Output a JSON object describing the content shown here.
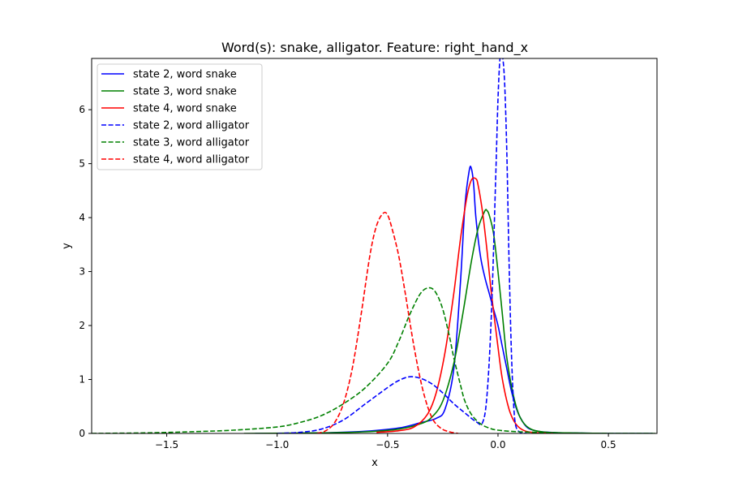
{
  "chart_data": {
    "type": "line",
    "title": "Word(s): snake, alligator. Feature: right_hand_x",
    "xlabel": "x",
    "ylabel": "y",
    "xlim": [
      -1.84,
      0.72
    ],
    "ylim": [
      0,
      6.95
    ],
    "xticks": [
      "−1.5",
      "−1.0",
      "−0.5",
      "0.0",
      "0.5"
    ],
    "xtick_values": [
      -1.5,
      -1.0,
      -0.5,
      0.0,
      0.5
    ],
    "yticks": [
      "0",
      "1",
      "2",
      "3",
      "4",
      "5",
      "6"
    ],
    "ytick_values": [
      0,
      1,
      2,
      3,
      4,
      5,
      6
    ],
    "grid": false,
    "legend_position": "top-left",
    "series": [
      {
        "name": "state 2, word snake",
        "color": "#0000ff",
        "style": "solid",
        "x": [
          -1.1,
          -0.8,
          -0.6,
          -0.45,
          -0.35,
          -0.28,
          -0.24,
          -0.2,
          -0.17,
          -0.15,
          -0.13,
          -0.12,
          -0.11,
          -0.1,
          -0.08,
          -0.06,
          -0.04,
          -0.02,
          0.0,
          0.02,
          0.04,
          0.06,
          0.08,
          0.1,
          0.13,
          0.16,
          0.2,
          0.3,
          0.5,
          0.7
        ],
        "y": [
          0.0,
          0.01,
          0.04,
          0.1,
          0.2,
          0.28,
          0.45,
          1.2,
          2.8,
          4.2,
          4.88,
          4.9,
          4.6,
          4.0,
          3.3,
          2.9,
          2.6,
          2.3,
          2.0,
          1.6,
          1.2,
          0.8,
          0.5,
          0.3,
          0.12,
          0.06,
          0.03,
          0.01,
          0.0,
          0.0
        ]
      },
      {
        "name": "state 3, word snake",
        "color": "#008000",
        "style": "solid",
        "x": [
          -1.15,
          -0.8,
          -0.6,
          -0.45,
          -0.35,
          -0.3,
          -0.25,
          -0.2,
          -0.16,
          -0.12,
          -0.09,
          -0.06,
          -0.05,
          -0.04,
          -0.02,
          0.0,
          0.02,
          0.04,
          0.07,
          0.1,
          0.14,
          0.2,
          0.3,
          0.5,
          0.7
        ],
        "y": [
          0.0,
          0.01,
          0.03,
          0.08,
          0.18,
          0.3,
          0.6,
          1.3,
          2.2,
          3.2,
          3.8,
          4.12,
          4.13,
          4.05,
          3.7,
          3.0,
          2.2,
          1.4,
          0.7,
          0.3,
          0.1,
          0.03,
          0.01,
          0.0,
          0.0
        ]
      },
      {
        "name": "state 4, word snake",
        "color": "#ff0000",
        "style": "solid",
        "x": [
          -0.55,
          -0.45,
          -0.38,
          -0.32,
          -0.28,
          -0.24,
          -0.2,
          -0.17,
          -0.14,
          -0.12,
          -0.1,
          -0.09,
          -0.07,
          -0.05,
          -0.03,
          0.0,
          0.02,
          0.05,
          0.08,
          0.12,
          0.18,
          0.25
        ],
        "y": [
          0.02,
          0.05,
          0.12,
          0.35,
          0.75,
          1.5,
          2.6,
          3.6,
          4.4,
          4.7,
          4.72,
          4.6,
          4.1,
          3.4,
          2.6,
          1.6,
          1.0,
          0.45,
          0.18,
          0.05,
          0.01,
          0.0
        ]
      },
      {
        "name": "state 2, word alligator",
        "color": "#0000ff",
        "style": "dashed",
        "x": [
          -1.0,
          -0.9,
          -0.8,
          -0.7,
          -0.6,
          -0.5,
          -0.45,
          -0.4,
          -0.35,
          -0.3,
          -0.25,
          -0.2,
          -0.15,
          -0.1,
          -0.07,
          -0.05,
          -0.03,
          -0.01,
          0.0,
          0.01,
          0.02,
          0.03,
          0.04,
          0.05,
          0.06,
          0.07,
          0.08,
          0.1,
          0.13
        ],
        "y": [
          0.0,
          0.02,
          0.08,
          0.25,
          0.55,
          0.85,
          0.98,
          1.05,
          1.02,
          0.92,
          0.75,
          0.55,
          0.38,
          0.22,
          0.2,
          0.7,
          2.2,
          4.8,
          6.2,
          7.0,
          7.0,
          6.5,
          5.2,
          3.2,
          1.6,
          0.6,
          0.15,
          0.02,
          0.0
        ]
      },
      {
        "name": "state 3, word alligator",
        "color": "#008000",
        "style": "dashed",
        "x": [
          -1.84,
          -1.6,
          -1.4,
          -1.2,
          -1.0,
          -0.9,
          -0.8,
          -0.7,
          -0.6,
          -0.5,
          -0.45,
          -0.4,
          -0.35,
          -0.31,
          -0.28,
          -0.25,
          -0.22,
          -0.2,
          -0.17,
          -0.15,
          -0.12,
          -0.08,
          -0.04,
          0.0,
          0.1,
          0.3,
          0.5,
          0.72
        ],
        "y": [
          0.0,
          0.01,
          0.03,
          0.06,
          0.12,
          0.2,
          0.33,
          0.55,
          0.85,
          1.3,
          1.7,
          2.2,
          2.6,
          2.7,
          2.6,
          2.3,
          1.8,
          1.4,
          0.9,
          0.6,
          0.35,
          0.18,
          0.1,
          0.06,
          0.03,
          0.01,
          0.0,
          0.0
        ]
      },
      {
        "name": "state 4, word alligator",
        "color": "#ff0000",
        "style": "dashed",
        "x": [
          -0.82,
          -0.78,
          -0.74,
          -0.7,
          -0.66,
          -0.62,
          -0.58,
          -0.55,
          -0.52,
          -0.5,
          -0.48,
          -0.45,
          -0.42,
          -0.38,
          -0.34,
          -0.3,
          -0.26,
          -0.22,
          -0.18
        ],
        "y": [
          0.0,
          0.05,
          0.2,
          0.55,
          1.2,
          2.2,
          3.3,
          3.85,
          4.08,
          4.05,
          3.8,
          3.3,
          2.6,
          1.6,
          0.8,
          0.3,
          0.1,
          0.03,
          0.0
        ]
      }
    ]
  }
}
